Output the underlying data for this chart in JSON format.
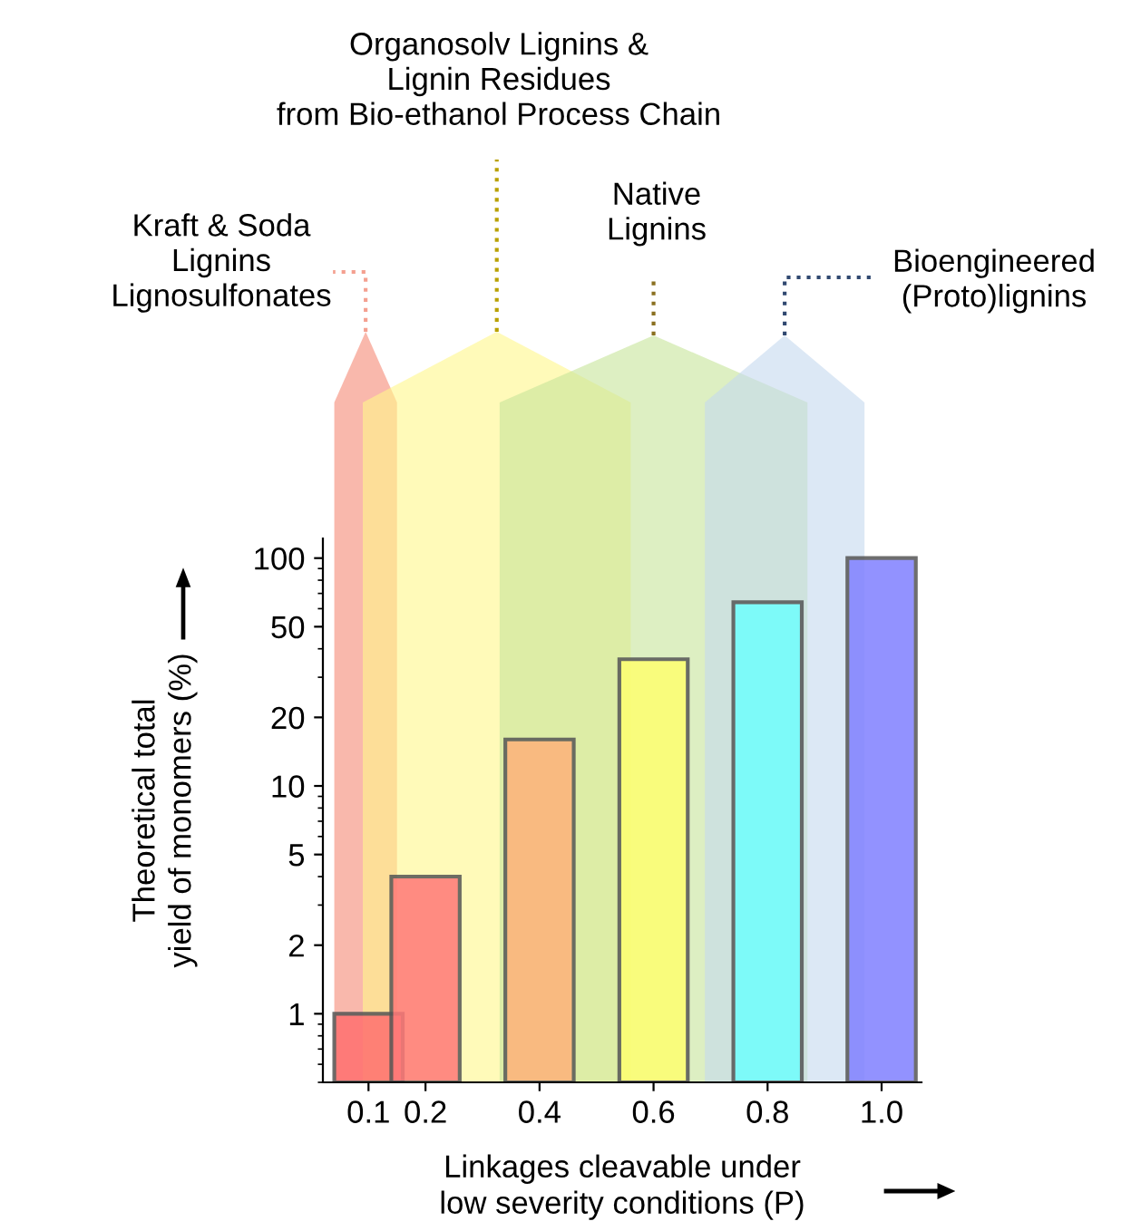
{
  "chart_data": {
    "type": "bar",
    "x": [
      0.1,
      0.2,
      0.4,
      0.6,
      0.8,
      1.0
    ],
    "values": [
      1,
      4,
      16,
      36,
      64,
      100
    ],
    "colors": [
      "#ff7070",
      "#ff7878",
      "#ffb27a",
      "#ffff70",
      "#70ffff",
      "#8080ff"
    ],
    "xlabel": "Linkages cleavable under\nlow severity conditions (P)",
    "ylabel": "Theoretical total\nyield of monomers (%)",
    "log": "y",
    "xlim": [
      0.02,
      1.07
    ],
    "xticks": [
      0.1,
      0.2,
      0.4,
      0.6,
      0.8,
      {
        "value": 1.0,
        "label": "1.0"
      }
    ],
    "ylim": [
      0.5,
      122
    ],
    "yticks": [
      1,
      2,
      5,
      10,
      20,
      50,
      100
    ],
    "grid": false,
    "bands": [
      {
        "axis": "x",
        "from": 0.04,
        "to": 0.15,
        "label": "Kraft & Soda\nLignins\nLignosulfonates",
        "color": "#f7a090"
      },
      {
        "axis": "x",
        "from": 0.09,
        "to": 0.56,
        "label": "Organosolv Lignins &\nLignin Residues\nfrom Bio-ethanol Process Chain",
        "color": "#fff68a"
      },
      {
        "axis": "x",
        "from": 0.33,
        "to": 0.87,
        "label": "Native\nLignins",
        "color": "#c6e49a"
      },
      {
        "axis": "x",
        "from": 0.69,
        "to": 0.97,
        "label": "Bioengineered\n(Proto)lignins",
        "color": "#c4d8ee"
      }
    ]
  }
}
